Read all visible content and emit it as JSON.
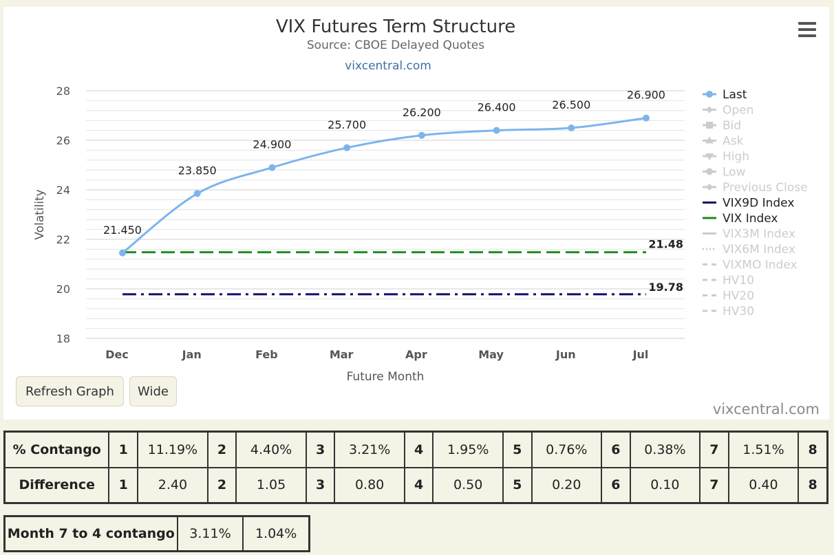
{
  "chart_data": {
    "type": "line",
    "title": "VIX Futures Term Structure",
    "subtitle": "Source: CBOE Delayed Quotes",
    "link": "vixcentral.com",
    "xlabel": "Future Month",
    "ylabel": "Volatility",
    "ylim": [
      18,
      28
    ],
    "yticks": [
      18,
      20,
      22,
      24,
      26,
      28
    ],
    "categories": [
      "Dec",
      "Jan",
      "Feb",
      "Mar",
      "Apr",
      "May",
      "Jun",
      "Jul"
    ],
    "series": [
      {
        "name": "Last",
        "values": [
          21.45,
          23.85,
          24.9,
          25.7,
          26.2,
          26.4,
          26.5,
          26.9
        ],
        "labels": [
          "21.450",
          "23.850",
          "24.900",
          "25.700",
          "26.200",
          "26.400",
          "26.500",
          "26.900"
        ],
        "color": "#7cb5ec"
      },
      {
        "name": "VIX9D Index",
        "value": 19.78,
        "label": "19.78",
        "color": "#0d0d6b",
        "dash": "dashdot"
      },
      {
        "name": "VIX Index",
        "value": 21.48,
        "label": "21.48",
        "color": "#1e8a1e",
        "dash": "dash"
      }
    ],
    "grid": true,
    "legend_position": "right",
    "legend": [
      {
        "name": "Last",
        "symbol": "circle",
        "active": true
      },
      {
        "name": "Open",
        "symbol": "diamond",
        "active": false
      },
      {
        "name": "Bid",
        "symbol": "square",
        "active": false
      },
      {
        "name": "Ask",
        "symbol": "triangle",
        "active": false
      },
      {
        "name": "High",
        "symbol": "triangle-down",
        "active": false
      },
      {
        "name": "Low",
        "symbol": "circle",
        "active": false
      },
      {
        "name": "Previous Close",
        "symbol": "diamond",
        "active": false
      },
      {
        "name": "VIX9D Index",
        "symbol": "line",
        "active": true,
        "color": "#0d0d6b"
      },
      {
        "name": "VIX Index",
        "symbol": "line",
        "active": true,
        "color": "#1e8a1e"
      },
      {
        "name": "VIX3M Index",
        "symbol": "line",
        "active": false
      },
      {
        "name": "VIX6M Index",
        "symbol": "dotted",
        "active": false
      },
      {
        "name": "VIXMO Index",
        "symbol": "dashed",
        "active": false
      },
      {
        "name": "HV10",
        "symbol": "dashed",
        "active": false
      },
      {
        "name": "HV20",
        "symbol": "dashed",
        "active": false
      },
      {
        "name": "HV30",
        "symbol": "dashed",
        "active": false
      }
    ]
  },
  "buttons": {
    "refresh": "Refresh Graph",
    "wide": "Wide"
  },
  "watermark": "vixcentral.com",
  "contango_table": {
    "rows": [
      {
        "label": "% Contango",
        "cells": [
          {
            "n": "1",
            "v": "11.19%"
          },
          {
            "n": "2",
            "v": "4.40%"
          },
          {
            "n": "3",
            "v": "3.21%"
          },
          {
            "n": "4",
            "v": "1.95%"
          },
          {
            "n": "5",
            "v": "0.76%"
          },
          {
            "n": "6",
            "v": "0.38%"
          },
          {
            "n": "7",
            "v": "1.51%"
          }
        ],
        "last": "8"
      },
      {
        "label": "Difference",
        "cells": [
          {
            "n": "1",
            "v": "2.40"
          },
          {
            "n": "2",
            "v": "1.05"
          },
          {
            "n": "3",
            "v": "0.80"
          },
          {
            "n": "4",
            "v": "0.50"
          },
          {
            "n": "5",
            "v": "0.20"
          },
          {
            "n": "6",
            "v": "0.10"
          },
          {
            "n": "7",
            "v": "0.40"
          }
        ],
        "last": "8"
      }
    ]
  },
  "month_table": {
    "label": "Month 7 to 4 contango",
    "values": [
      "3.11%",
      "1.04%"
    ]
  },
  "colors": {
    "background": "#f4f3e6",
    "accent": "#7cb5ec",
    "link": "#3d6fa6",
    "inactive": "#cccccc"
  }
}
